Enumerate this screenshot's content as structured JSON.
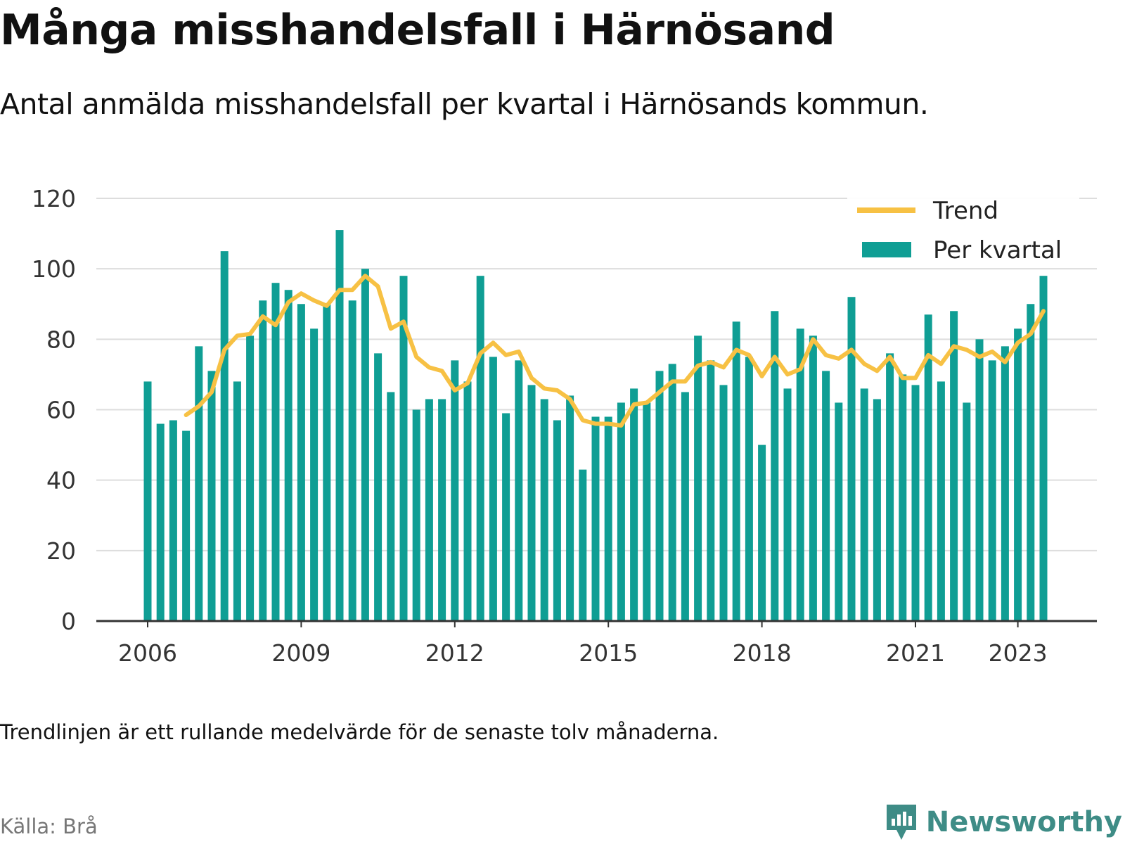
{
  "title": "Många misshandelsfall i Härnösand",
  "subtitle": "Antal anmälda misshandelsfall per kvartal i Härnösands kommun.",
  "note": "Trendlinjen är ett rullande medelvärde för de senaste tolv månaderna.",
  "source": "Källa: Brå",
  "brand": "Newsworthy",
  "colors": {
    "bars": "#0f9e94",
    "trend": "#f7c144",
    "grid": "#dddddd",
    "axis": "#333333",
    "brand": "#3e8c86"
  },
  "chart_data": {
    "type": "bar",
    "x_tick_labels": [
      "2006",
      "2009",
      "2012",
      "2015",
      "2018",
      "2021",
      "2023"
    ],
    "x_tick_positions": [
      0,
      12,
      24,
      36,
      48,
      60,
      68
    ],
    "ylim": [
      0,
      120
    ],
    "y_ticks": [
      0,
      20,
      40,
      60,
      80,
      100,
      120
    ],
    "grid": true,
    "legend_position": "top-right",
    "series": [
      {
        "name": "Per kvartal",
        "type": "bar",
        "values": [
          68,
          56,
          57,
          54,
          78,
          71,
          105,
          68,
          81,
          91,
          96,
          94,
          90,
          83,
          90,
          111,
          91,
          100,
          76,
          65,
          98,
          60,
          63,
          63,
          74,
          68,
          98,
          75,
          59,
          74,
          67,
          63,
          57,
          64,
          43,
          58,
          58,
          62,
          66,
          62,
          71,
          73,
          65,
          81,
          74,
          67,
          85,
          75,
          50,
          88,
          66,
          83,
          81,
          71,
          62,
          92,
          66,
          63,
          76,
          70,
          67,
          87,
          68,
          88,
          62,
          80,
          74,
          78,
          83,
          90,
          98
        ]
      },
      {
        "name": "Trend",
        "type": "line",
        "start_index": 3,
        "values": [
          58.5,
          61,
          65,
          77,
          81,
          81.5,
          86.5,
          84,
          90.5,
          93,
          91,
          89.5,
          94,
          94,
          98,
          95,
          83,
          85,
          75,
          72,
          71,
          65.5,
          67.5,
          76,
          79,
          75.5,
          76.5,
          69,
          66,
          65.5,
          63,
          57,
          56,
          56,
          55.5,
          61.5,
          62,
          65,
          68,
          68,
          72.5,
          73.5,
          72,
          77,
          75.5,
          69.5,
          75,
          70,
          71.5,
          80,
          75.5,
          74.5,
          77,
          73,
          71,
          75,
          69,
          69,
          75.5,
          73,
          78,
          77,
          75,
          76.5,
          73.5,
          79,
          81.5,
          88
        ]
      }
    ]
  }
}
